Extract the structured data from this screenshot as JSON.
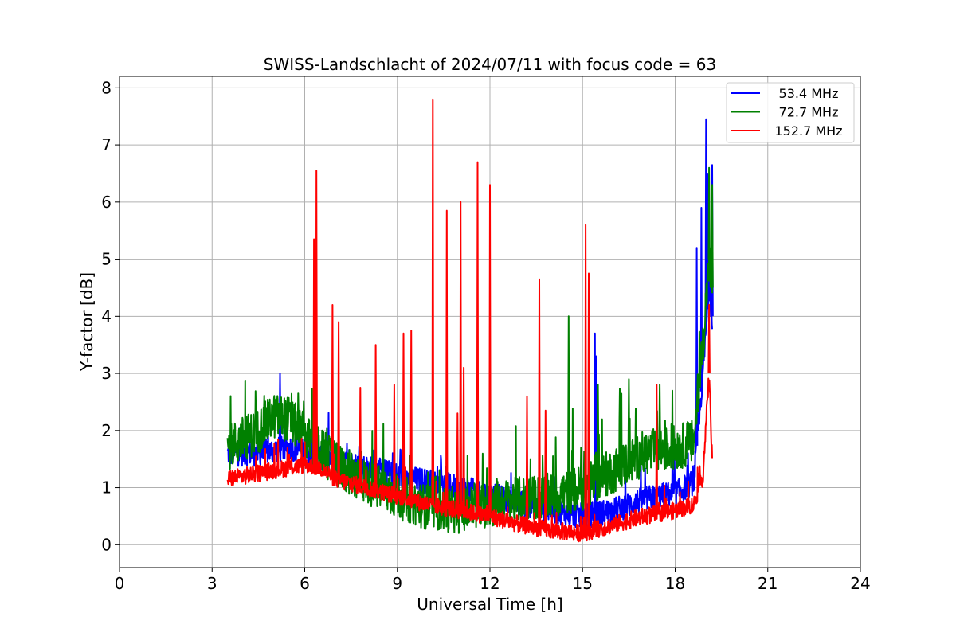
{
  "chart_data": {
    "type": "line",
    "title": "SWISS-Landschlacht of 2024/07/11 with focus code = 63",
    "xlabel": "Universal Time [h]",
    "ylabel": "Y-factor [dB]",
    "xlim": [
      0,
      24
    ],
    "ylim": [
      -0.4,
      8.2
    ],
    "xticks": [
      0,
      3,
      6,
      9,
      12,
      15,
      18,
      21,
      24
    ],
    "yticks": [
      0,
      1,
      2,
      3,
      4,
      5,
      6,
      7,
      8
    ],
    "grid": true,
    "legend_position": "top-right",
    "series": [
      {
        "name": "53.4 MHz",
        "color": "#0000ff",
        "baseline": [
          [
            3.5,
            1.6
          ],
          [
            4.5,
            1.6
          ],
          [
            5.5,
            1.7
          ],
          [
            6.5,
            1.55
          ],
          [
            8,
            1.35
          ],
          [
            9.5,
            1.15
          ],
          [
            11,
            1.0
          ],
          [
            12.5,
            0.8
          ],
          [
            14,
            0.6
          ],
          [
            15,
            0.5
          ],
          [
            16,
            0.6
          ],
          [
            17,
            0.8
          ],
          [
            18,
            0.9
          ],
          [
            18.6,
            1.1
          ],
          [
            18.9,
            3.0
          ],
          [
            19.1,
            4.5
          ],
          [
            19.2,
            4.0
          ]
        ],
        "noise": 0.45,
        "spikes": [
          [
            5.2,
            3.0
          ],
          [
            15.4,
            3.7
          ],
          [
            15.45,
            3.3
          ],
          [
            18.7,
            5.2
          ],
          [
            18.85,
            5.9
          ],
          [
            19.0,
            7.45
          ],
          [
            19.05,
            6.5
          ],
          [
            19.2,
            6.65
          ]
        ]
      },
      {
        "name": "72.7 MHz",
        "color": "#008000",
        "baseline": [
          [
            3.5,
            1.7
          ],
          [
            4,
            1.85
          ],
          [
            4.5,
            2.0
          ],
          [
            5,
            2.25
          ],
          [
            5.5,
            2.2
          ],
          [
            6,
            1.9
          ],
          [
            7,
            1.4
          ],
          [
            8,
            1.1
          ],
          [
            9,
            0.85
          ],
          [
            10,
            0.65
          ],
          [
            11,
            0.6
          ],
          [
            12,
            0.7
          ],
          [
            13,
            0.8
          ],
          [
            14,
            0.85
          ],
          [
            15,
            1.0
          ],
          [
            16,
            1.3
          ],
          [
            17,
            1.6
          ],
          [
            18,
            1.7
          ],
          [
            18.6,
            1.8
          ],
          [
            18.9,
            3.5
          ],
          [
            19.1,
            5.0
          ],
          [
            19.2,
            4.5
          ]
        ],
        "noise": 0.8,
        "spikes": [
          [
            14.55,
            4.0
          ],
          [
            15.5,
            2.8
          ],
          [
            16.5,
            2.9
          ],
          [
            17.5,
            2.8
          ],
          [
            19.1,
            6.6
          ],
          [
            19.2,
            6.3
          ]
        ]
      },
      {
        "name": "152.7 MHz",
        "color": "#ff0000",
        "baseline": [
          [
            3.5,
            1.15
          ],
          [
            4,
            1.2
          ],
          [
            5,
            1.3
          ],
          [
            6,
            1.4
          ],
          [
            6.5,
            1.35
          ],
          [
            7,
            1.15
          ],
          [
            8,
            1.0
          ],
          [
            9,
            0.85
          ],
          [
            10,
            0.7
          ],
          [
            11,
            0.6
          ],
          [
            12,
            0.5
          ],
          [
            13,
            0.35
          ],
          [
            14,
            0.25
          ],
          [
            15,
            0.2
          ],
          [
            16,
            0.35
          ],
          [
            17,
            0.5
          ],
          [
            18,
            0.6
          ],
          [
            18.6,
            0.7
          ],
          [
            18.9,
            1.2
          ],
          [
            19.1,
            3.0
          ],
          [
            19.2,
            1.5
          ]
        ],
        "noise": 0.3,
        "spikes": [
          [
            6.3,
            5.35
          ],
          [
            6.38,
            6.55
          ],
          [
            6.9,
            4.2
          ],
          [
            7.1,
            3.9
          ],
          [
            7.8,
            2.75
          ],
          [
            8.3,
            3.5
          ],
          [
            8.9,
            2.8
          ],
          [
            9.2,
            3.7
          ],
          [
            9.45,
            3.75
          ],
          [
            10.15,
            7.8
          ],
          [
            10.6,
            5.85
          ],
          [
            10.95,
            2.3
          ],
          [
            11.05,
            6.0
          ],
          [
            11.15,
            3.1
          ],
          [
            11.6,
            6.7
          ],
          [
            12.0,
            6.3
          ],
          [
            13.2,
            2.6
          ],
          [
            13.6,
            4.65
          ],
          [
            13.8,
            2.35
          ],
          [
            15.1,
            5.6
          ],
          [
            15.2,
            4.75
          ],
          [
            17.4,
            2.8
          ],
          [
            19.1,
            4.2
          ]
        ]
      }
    ]
  }
}
